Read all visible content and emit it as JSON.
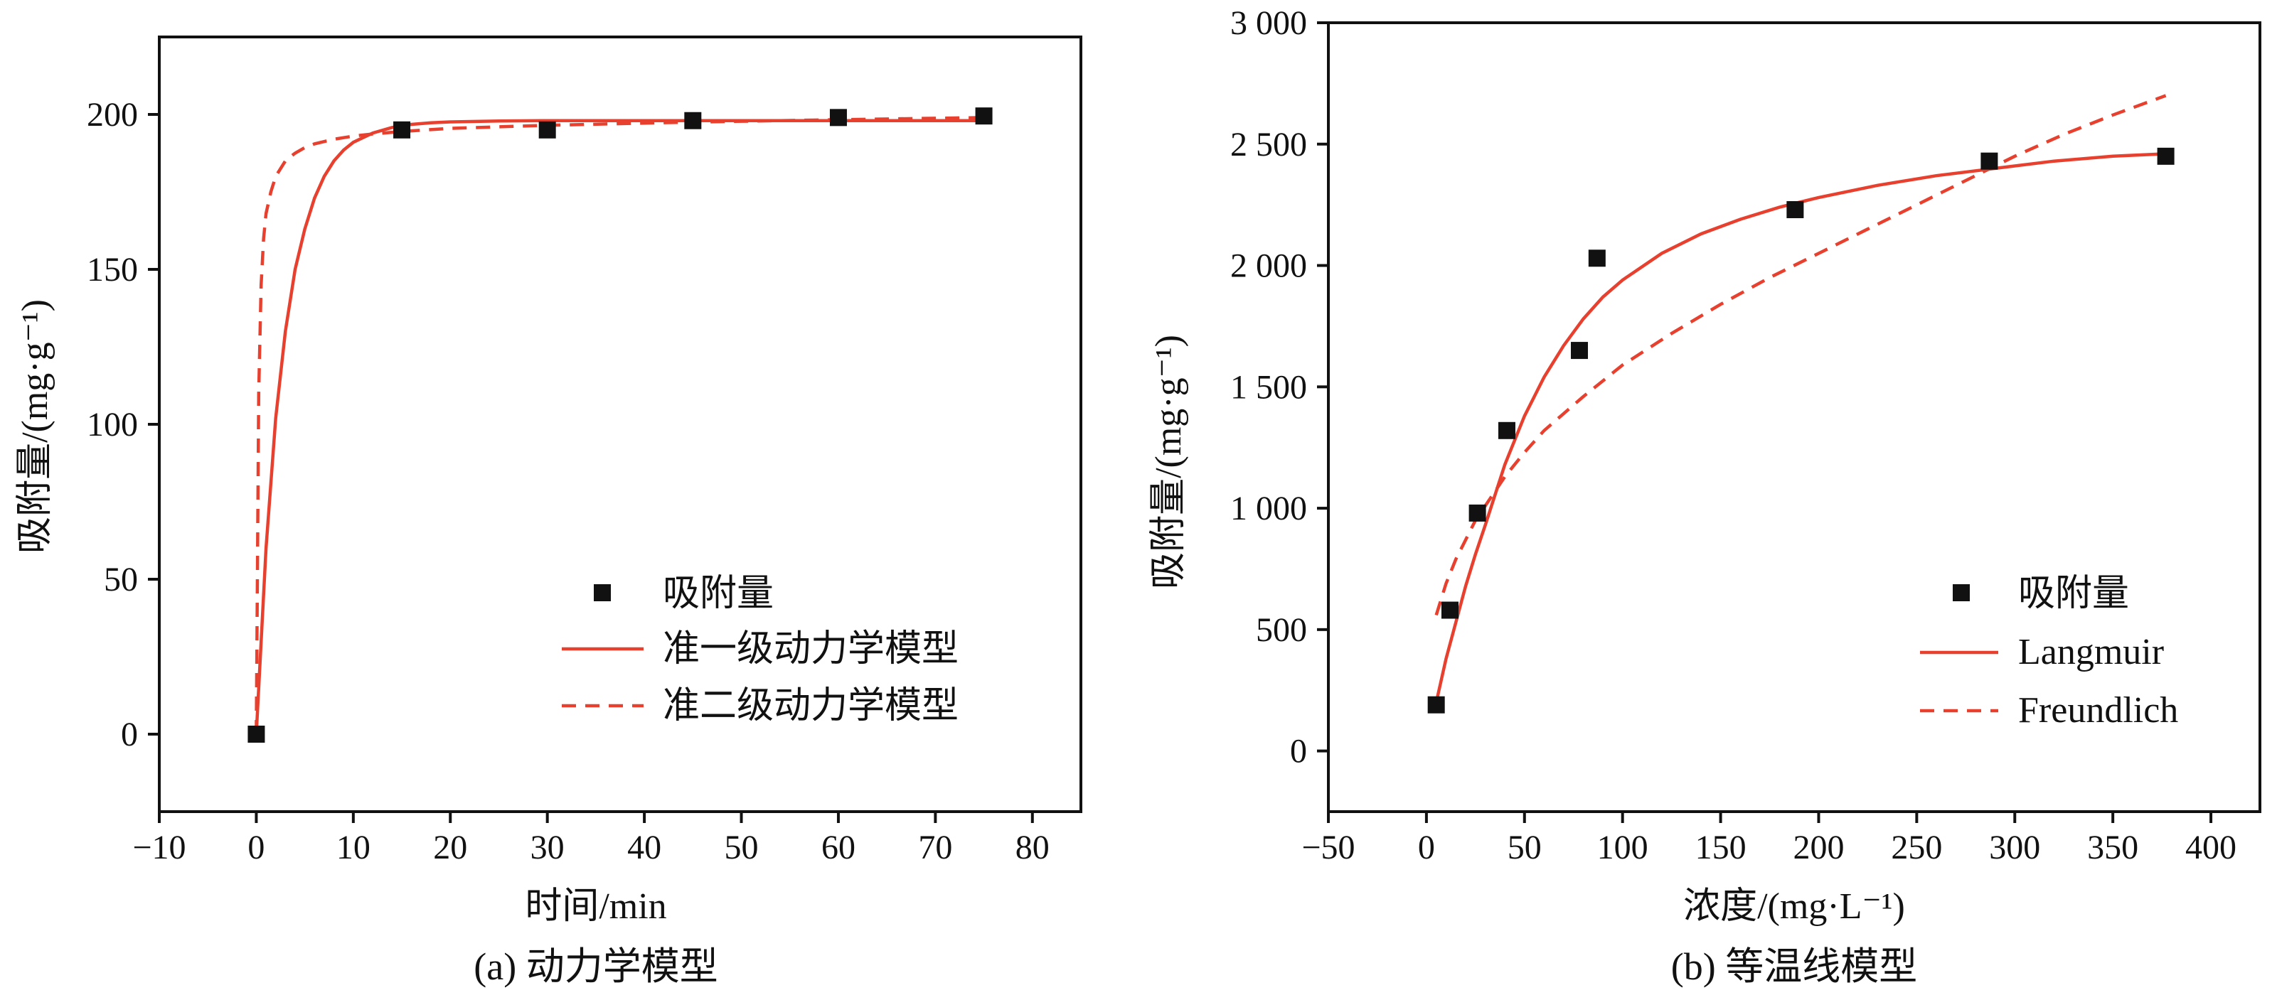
{
  "colors": {
    "fit_line": "#e8402f",
    "marker": "#111111",
    "axis": "#111111",
    "background": "#ffffff"
  },
  "panels": [
    {
      "caption": "(a) 动力学模型",
      "xlabel": "时间/min",
      "ylabel": "吸附量/(mg·g⁻¹)",
      "legend": {
        "placement": "lower-right",
        "entries": [
          {
            "label": "吸附量",
            "kind": "marker"
          },
          {
            "label": "准一级动力学模型",
            "kind": "solid"
          },
          {
            "label": "准二级动力学模型",
            "kind": "dashed"
          }
        ]
      }
    },
    {
      "caption": "(b) 等温线模型",
      "xlabel": "浓度/(mg·L⁻¹)",
      "ylabel": "吸附量/(mg·g⁻¹)",
      "legend": {
        "placement": "lower-right",
        "entries": [
          {
            "label": "吸附量",
            "kind": "marker"
          },
          {
            "label": "Langmuir",
            "kind": "solid"
          },
          {
            "label": "Freundlich",
            "kind": "dashed"
          }
        ]
      }
    }
  ],
  "chart_data": [
    {
      "type": "scatter",
      "xlim": [
        -10,
        85
      ],
      "ylim": [
        -25,
        225
      ],
      "xticks": [
        -10,
        0,
        10,
        20,
        30,
        40,
        50,
        60,
        70,
        80
      ],
      "xtick_labels": [
        "−10",
        "0",
        "10",
        "20",
        "30",
        "40",
        "50",
        "60",
        "70",
        "80"
      ],
      "yticks": [
        0,
        50,
        100,
        150,
        200
      ],
      "ytick_labels": [
        "0",
        "50",
        "100",
        "150",
        "200"
      ],
      "grid": false,
      "series": [
        {
          "name": "吸附量",
          "kind": "marker",
          "x": [
            0,
            15,
            30,
            45,
            60,
            75
          ],
          "y": [
            0,
            195,
            195,
            198,
            199,
            199.5
          ]
        },
        {
          "name": "准一级动力学模型",
          "kind": "solid",
          "x": [
            0,
            1,
            2,
            3,
            4,
            5,
            6,
            7,
            8,
            9,
            10,
            12,
            14,
            16,
            18,
            20,
            25,
            30,
            40,
            50,
            60,
            75
          ],
          "y": [
            0,
            60,
            102,
            130,
            150,
            163,
            173,
            180,
            185,
            188.5,
            191,
            194,
            195.8,
            196.8,
            197.3,
            197.6,
            197.9,
            198,
            198,
            198,
            198,
            198
          ]
        },
        {
          "name": "准二级动力学模型",
          "kind": "dashed",
          "x": [
            0,
            0.25,
            0.5,
            0.75,
            1,
            1.5,
            2,
            3,
            4,
            5,
            6,
            8,
            10,
            12,
            15,
            20,
            30,
            40,
            50,
            60,
            75
          ],
          "y": [
            0,
            110,
            145,
            160,
            168,
            175,
            180,
            185,
            187.5,
            189.3,
            190.5,
            192,
            193,
            193.7,
            194.5,
            195.5,
            196.5,
            197.2,
            197.8,
            198.3,
            199
          ]
        }
      ]
    },
    {
      "type": "scatter",
      "xlim": [
        -50,
        425
      ],
      "ylim": [
        -250,
        3000
      ],
      "xticks": [
        -50,
        0,
        50,
        100,
        150,
        200,
        250,
        300,
        350,
        400
      ],
      "xtick_labels": [
        "−50",
        "0",
        "50",
        "100",
        "150",
        "200",
        "250",
        "300",
        "350",
        "400"
      ],
      "yticks": [
        0,
        500,
        1000,
        1500,
        2000,
        2500,
        3000
      ],
      "ytick_labels": [
        "0",
        "500",
        "1 000",
        "1 500",
        "2 000",
        "2 500",
        "3 000"
      ],
      "grid": false,
      "series": [
        {
          "name": "吸附量",
          "kind": "marker",
          "x": [
            5,
            12,
            26,
            41,
            78,
            87,
            188,
            287,
            377
          ],
          "y": [
            190,
            580,
            980,
            1320,
            1650,
            2030,
            2230,
            2430,
            2450
          ]
        },
        {
          "name": "Langmuir",
          "kind": "solid",
          "x": [
            5,
            10,
            15,
            20,
            25,
            30,
            40,
            50,
            60,
            70,
            80,
            90,
            100,
            120,
            140,
            160,
            180,
            200,
            230,
            260,
            290,
            320,
            350,
            377
          ],
          "y": [
            200,
            380,
            530,
            680,
            810,
            930,
            1180,
            1380,
            1540,
            1670,
            1780,
            1870,
            1940,
            2050,
            2130,
            2190,
            2240,
            2280,
            2330,
            2370,
            2400,
            2430,
            2450,
            2460
          ]
        },
        {
          "name": "Freundlich",
          "kind": "dashed",
          "x": [
            5,
            10,
            15,
            20,
            25,
            30,
            40,
            50,
            60,
            80,
            100,
            125,
            150,
            175,
            200,
            225,
            250,
            275,
            300,
            325,
            350,
            377
          ],
          "y": [
            560,
            690,
            790,
            870,
            950,
            1010,
            1130,
            1230,
            1320,
            1460,
            1590,
            1720,
            1840,
            1950,
            2050,
            2150,
            2250,
            2350,
            2450,
            2540,
            2620,
            2700
          ]
        }
      ]
    }
  ]
}
